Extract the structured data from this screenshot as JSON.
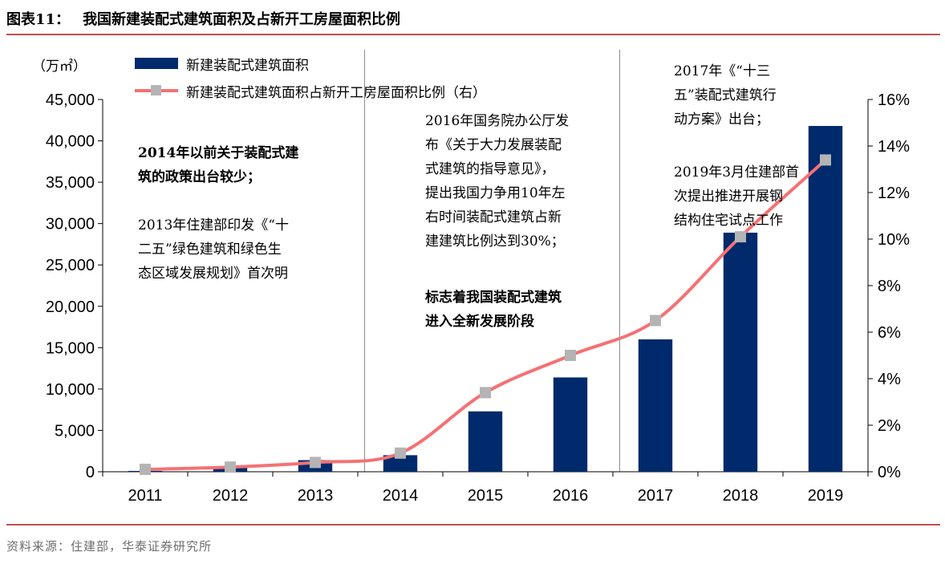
{
  "figure": {
    "label": "图表11：",
    "title": "我国新建装配式建筑面积及占新开工房屋面积比例",
    "source": "资料来源：住建部，华泰证券研究所"
  },
  "chart_data": {
    "type": "bar",
    "categories": [
      "2011",
      "2012",
      "2013",
      "2014",
      "2015",
      "2016",
      "2017",
      "2018",
      "2019"
    ],
    "series": [
      {
        "name": "新建装配式建筑面积",
        "type": "bar",
        "axis": "left",
        "color": "#002a6c",
        "values": [
          100,
          600,
          1400,
          2000,
          7300,
          11400,
          16000,
          28900,
          41800
        ]
      },
      {
        "name": "新建装配式建筑面积占新开工房屋面积比例（右）",
        "type": "line",
        "axis": "right",
        "color": "#f47174",
        "marker_color": "#b4b4b4",
        "values": [
          0.001,
          0.002,
          0.004,
          0.008,
          0.034,
          0.05,
          0.065,
          0.101,
          0.134
        ]
      }
    ],
    "y_left": {
      "unit": "（万㎡）",
      "ylim": [
        0,
        45000
      ],
      "ticks": [
        0,
        5000,
        10000,
        15000,
        20000,
        25000,
        30000,
        35000,
        40000,
        45000
      ],
      "tick_labels": [
        "0",
        "5,000",
        "10,000",
        "15,000",
        "20,000",
        "25,000",
        "30,000",
        "35,000",
        "40,000",
        "45,000"
      ]
    },
    "y_right": {
      "ylim": [
        0,
        0.16
      ],
      "ticks": [
        0,
        0.02,
        0.04,
        0.06,
        0.08,
        0.1,
        0.12,
        0.14,
        0.16
      ],
      "tick_labels": [
        "0%",
        "2%",
        "4%",
        "6%",
        "8%",
        "10%",
        "12%",
        "14%",
        "16%"
      ]
    },
    "divider_years": [
      "2014",
      "2017"
    ],
    "grid": false,
    "legend_placement": "top-left",
    "annotations": {
      "a1_bold": "2014年以前关于装配式建\n筑的政策出台较少；",
      "a1_text": "2013年住建部印发《“十\n二五”绿色建筑和绿色生\n态区域发展规划》首次明",
      "a2_text": "2016年国务院办公厅发\n布《关于大力发展装配\n式建筑的指导意见》，\n提出我国力争用10年左\n右时间装配式建筑占新\n建建筑比例达到30%；",
      "a2_bold": "标志着我国装配式建筑\n进入全新发展阶段",
      "a3_text1": "2017年《“十三\n五”装配式建筑行\n动方案》出台；",
      "a3_text2": "2019年3月住建部首\n次提出推进开展钢\n结构住宅试点工作"
    }
  }
}
